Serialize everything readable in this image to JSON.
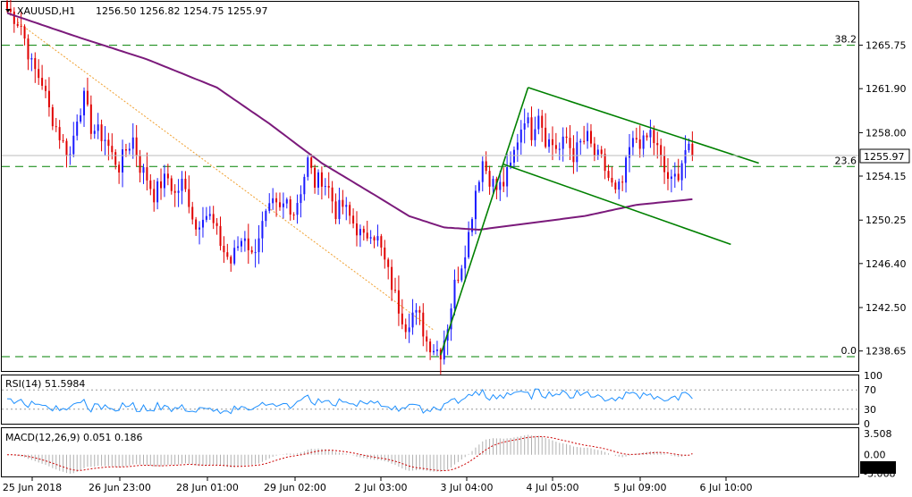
{
  "header": {
    "symbol": "XAUUSD,H1",
    "ohlc": "1256.50 1256.82 1254.75 1255.97"
  },
  "colors": {
    "up": "#1a1aff",
    "down": "#e00000",
    "ma": "#7b1a7b",
    "trend": "#008000",
    "fib": "#008000",
    "rsi": "#1e90ff",
    "macd_hist": "#b0b0b0",
    "macd_signal": "#cc0000",
    "price_box": "#ffffff"
  },
  "chart_data": [
    {
      "type": "candlestick",
      "symbol": "XAUUSD",
      "timeframe": "H1",
      "title": "XAUUSD,H1",
      "ylim": [
        1236.8,
        1269.6
      ],
      "y_ticks": [
        "1265.75",
        "1261.90",
        "1258.00",
        "1254.15",
        "1250.25",
        "1246.40",
        "1242.50",
        "1238.65"
      ],
      "last_price": "1255.97",
      "x_ticks": [
        "25 Jun 2018",
        "26 Jun 23:00",
        "28 Jun 01:00",
        "29 Jun 02:00",
        "2 Jul 03:00",
        "3 Jul 04:00",
        "4 Jul 05:00",
        "5 Jul 09:00",
        "6 Jul 10:00"
      ],
      "fib_levels": [
        {
          "label": "38.2",
          "value": 1265.75
        },
        {
          "label": "23.6",
          "value": 1255.0
        },
        {
          "label": "0.0",
          "value": 1238.15
        }
      ],
      "close_path": [
        [
          0,
          1269.0
        ],
        [
          4,
          1267.5
        ],
        [
          7,
          1264.0
        ],
        [
          10,
          1262.5
        ],
        [
          12,
          1260.0
        ],
        [
          14,
          1258.5
        ],
        [
          16,
          1257.0
        ],
        [
          18,
          1256.0
        ],
        [
          20,
          1259.5
        ],
        [
          22,
          1261.0
        ],
        [
          24,
          1258.5
        ],
        [
          26,
          1258.0
        ],
        [
          28,
          1257.5
        ],
        [
          30,
          1256.0
        ],
        [
          32,
          1255.0
        ],
        [
          34,
          1256.5
        ],
        [
          36,
          1257.5
        ],
        [
          38,
          1255.0
        ],
        [
          40,
          1254.0
        ],
        [
          42,
          1252.5
        ],
        [
          44,
          1253.5
        ],
        [
          46,
          1254.0
        ],
        [
          48,
          1252.5
        ],
        [
          50,
          1253.5
        ],
        [
          52,
          1252.0
        ],
        [
          54,
          1249.5
        ],
        [
          56,
          1251.0
        ],
        [
          58,
          1250.5
        ],
        [
          60,
          1249.0
        ],
        [
          62,
          1247.5
        ],
        [
          64,
          1246.5
        ],
        [
          66,
          1248.0
        ],
        [
          68,
          1249.0
        ],
        [
          70,
          1247.0
        ],
        [
          72,
          1249.0
        ],
        [
          74,
          1250.5
        ],
        [
          76,
          1251.5
        ],
        [
          78,
          1251.0
        ],
        [
          80,
          1252.0
        ],
        [
          82,
          1251.0
        ],
        [
          84,
          1253.0
        ],
        [
          86,
          1255.5
        ],
        [
          88,
          1253.5
        ],
        [
          90,
          1254.0
        ],
        [
          92,
          1253.0
        ],
        [
          94,
          1251.0
        ],
        [
          96,
          1251.5
        ],
        [
          98,
          1250.5
        ],
        [
          100,
          1249.5
        ],
        [
          102,
          1248.5
        ],
        [
          104,
          1249.5
        ],
        [
          106,
          1248.5
        ],
        [
          108,
          1246.5
        ],
        [
          110,
          1244.5
        ],
        [
          112,
          1242.5
        ],
        [
          114,
          1241.0
        ],
        [
          116,
          1242.0
        ],
        [
          118,
          1241.5
        ],
        [
          120,
          1239.5
        ],
        [
          122,
          1239.0
        ],
        [
          124,
          1238.6
        ],
        [
          126,
          1241.0
        ],
        [
          128,
          1244.5
        ],
        [
          130,
          1246.5
        ],
        [
          132,
          1249.0
        ],
        [
          134,
          1253.0
        ],
        [
          136,
          1255.5
        ],
        [
          138,
          1254.0
        ],
        [
          140,
          1253.0
        ],
        [
          142,
          1253.5
        ],
        [
          144,
          1255.0
        ],
        [
          146,
          1257.5
        ],
        [
          148,
          1259.5
        ],
        [
          150,
          1258.0
        ],
        [
          152,
          1260.0
        ],
        [
          154,
          1257.5
        ],
        [
          156,
          1257.0
        ],
        [
          158,
          1256.5
        ],
        [
          160,
          1257.5
        ],
        [
          162,
          1256.0
        ],
        [
          164,
          1257.0
        ],
        [
          166,
          1257.5
        ],
        [
          168,
          1256.0
        ],
        [
          170,
          1255.5
        ],
        [
          172,
          1254.0
        ],
        [
          174,
          1252.5
        ],
        [
          176,
          1253.5
        ],
        [
          178,
          1256.5
        ],
        [
          180,
          1257.5
        ],
        [
          182,
          1257.0
        ],
        [
          184,
          1258.0
        ],
        [
          186,
          1256.5
        ],
        [
          188,
          1254.5
        ],
        [
          190,
          1253.5
        ],
        [
          192,
          1254.5
        ],
        [
          194,
          1256.5
        ],
        [
          196,
          1255.97
        ]
      ],
      "sma": [
        [
          0,
          1268.6
        ],
        [
          20,
          1266.5
        ],
        [
          40,
          1264.5
        ],
        [
          60,
          1262.0
        ],
        [
          75,
          1258.8
        ],
        [
          90,
          1255.3
        ],
        [
          105,
          1252.5
        ],
        [
          115,
          1250.6
        ],
        [
          125,
          1249.6
        ],
        [
          135,
          1249.4
        ],
        [
          150,
          1250.0
        ],
        [
          165,
          1250.6
        ],
        [
          180,
          1251.6
        ],
        [
          196,
          1252.1
        ]
      ],
      "channel_upper": [
        [
          149,
          1262.0
        ],
        [
          215,
          1255.3
        ]
      ],
      "channel_lower": [
        [
          142,
          1255.2
        ],
        [
          207,
          1248.1
        ]
      ],
      "impulse_line": [
        [
          124,
          1238.3
        ],
        [
          149,
          1262.0
        ]
      ],
      "dotted_trend": [
        [
          3,
          1267.8
        ],
        [
          122,
          1240.5
        ]
      ]
    },
    {
      "type": "line",
      "name": "RSI(14)",
      "label": "RSI(14) 51.5984",
      "value": 51.5984,
      "ylim": [
        0,
        100
      ],
      "y_ticks": [
        "100",
        "70",
        "30",
        "0"
      ],
      "levels": [
        70,
        30
      ]
    },
    {
      "type": "bar",
      "name": "MACD(12,26,9)",
      "label": "MACD(12,26,9) 0.051 0.186",
      "macd": 0.051,
      "signal": 0.186,
      "ylim": [
        -3.6,
        4.4
      ],
      "y_ticks": [
        "3.508",
        "0.00",
        "-3.068"
      ]
    }
  ]
}
